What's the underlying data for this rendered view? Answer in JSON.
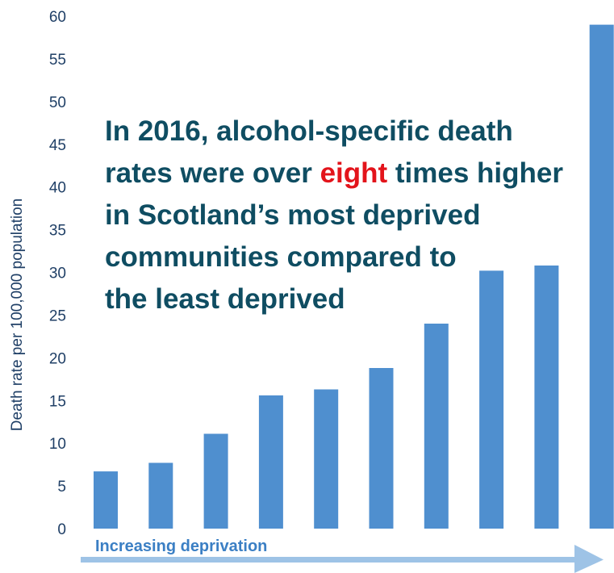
{
  "chart_data": {
    "type": "bar",
    "title": "",
    "ylabel": "Death rate per 100,000 population",
    "xlabel": "Increasing deprivation",
    "ylim": [
      0,
      60
    ],
    "yticks": [
      0,
      5,
      10,
      15,
      20,
      25,
      30,
      35,
      40,
      45,
      50,
      55,
      60
    ],
    "categories": [
      "",
      "",
      "",
      "",
      "",
      "",
      "",
      "",
      "",
      ""
    ],
    "values": [
      6.7,
      7.7,
      11.1,
      15.6,
      16.3,
      18.8,
      24.0,
      30.2,
      30.8,
      59.0
    ],
    "bar_color": "#4f8fcf",
    "axis_label_color": "#1f3f66",
    "xlabel_color": "#3b7fc4",
    "arrow_color": "#9ec3e6",
    "grid": false,
    "legend": "none"
  },
  "annotation": {
    "line1": "In 2016, alcohol-specific death",
    "line2_before": "rates were over ",
    "line2_highlight": "eight",
    "line2_after": " times higher",
    "line3": "in Scotland’s most deprived",
    "line4": "communities compared to",
    "line5": "the least deprived",
    "text_color": "#0f4d62",
    "highlight_color": "#e3141b"
  }
}
